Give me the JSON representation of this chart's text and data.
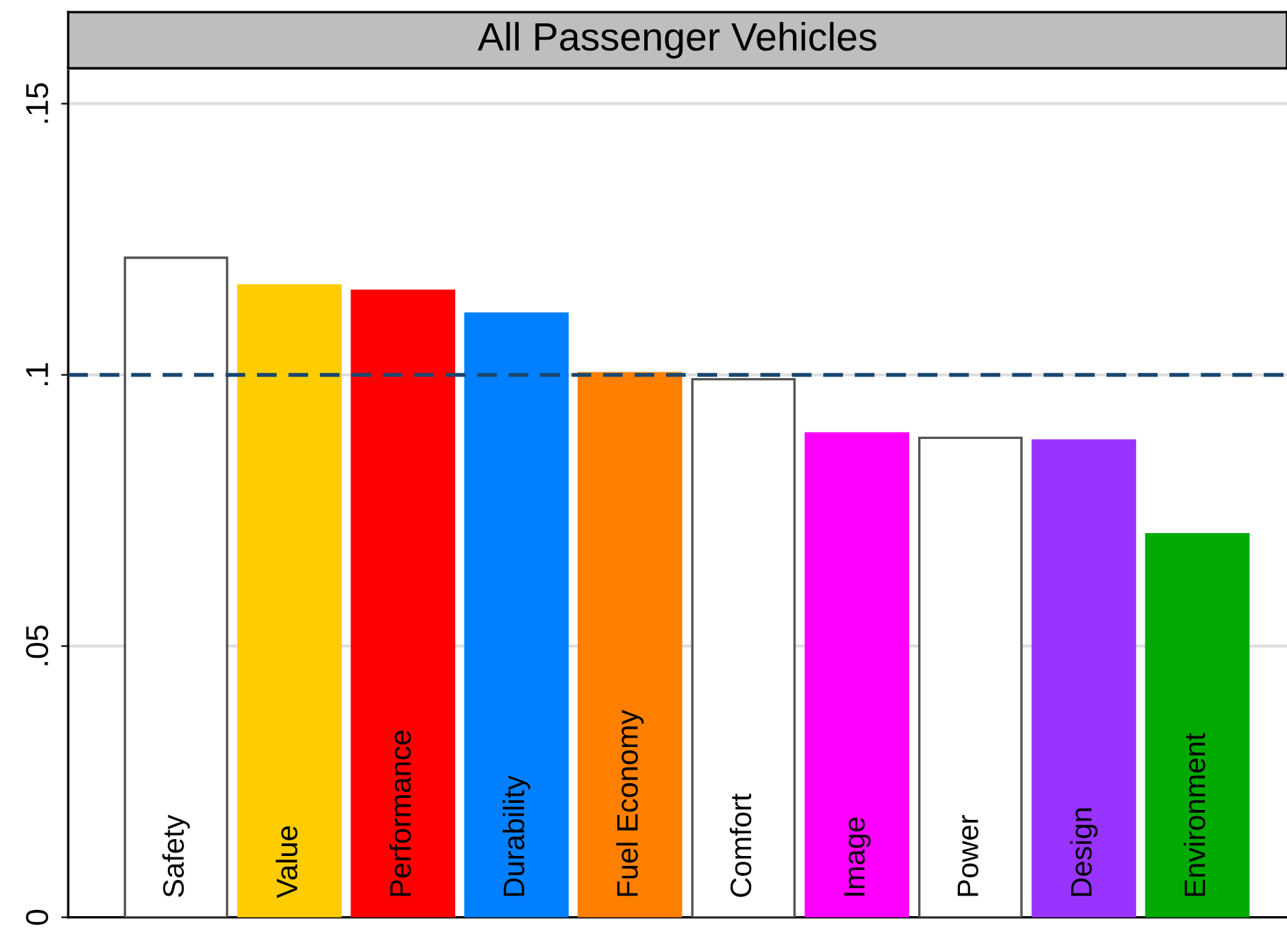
{
  "chart_data": {
    "type": "bar",
    "title": "All Passenger Vehicles",
    "categories": [
      "Safety",
      "Value",
      "Performance",
      "Durability",
      "Fuel Economy",
      "Comfort",
      "Image",
      "Power",
      "Design",
      "Environment"
    ],
    "values": [
      0.1216,
      0.1165,
      0.1155,
      0.1113,
      0.1003,
      0.0992,
      0.0892,
      0.0884,
      0.0879,
      0.0706
    ],
    "colors": [
      "#ffffff",
      "#ffcc00",
      "#ff0000",
      "#0080ff",
      "#ff8000",
      "#ffffff",
      "#ff00ff",
      "#ffffff",
      "#9933ff",
      "#00aa00"
    ],
    "ylim": [
      0,
      0.156
    ],
    "yticks": [
      {
        "value": 0,
        "label": "0"
      },
      {
        "value": 0.05,
        "label": ".05"
      },
      {
        "value": 0.1,
        "label": ".1"
      },
      {
        "value": 0.15,
        "label": ".15"
      }
    ],
    "grid": "y",
    "ref_lines": [
      {
        "axis": "y",
        "value": 0.1,
        "label": null,
        "color": "#1a476f",
        "line_style": "dashed"
      }
    ]
  }
}
